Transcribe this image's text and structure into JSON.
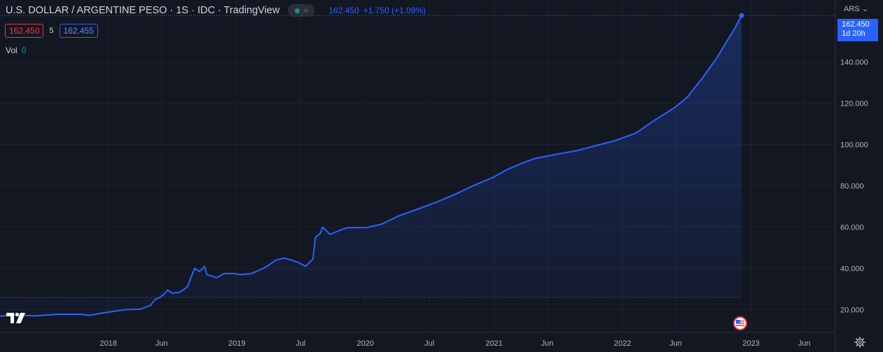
{
  "header": {
    "title": "U.S. DOLLAR / ARGENTINE PESO · 1S · IDC · TradingView",
    "last_price": "162.450",
    "change": "+1.750 (+1.09%)"
  },
  "quote": {
    "sell": "162.450",
    "spread": "5",
    "buy": "162.455"
  },
  "volume": {
    "label": "Vol",
    "value": "0"
  },
  "price_axis": {
    "currency": "ARS",
    "last_price_tag": "162.450",
    "countdown": "1d 20h"
  },
  "icons": {
    "logo": "tradingview-logo-icon",
    "flag": "us-flag-icon",
    "settings": "gear-icon"
  },
  "colors": {
    "background": "#131722",
    "line": "#2962ff",
    "sell": "#f23645",
    "buy": "#2962ff",
    "volume": "#089981"
  },
  "chart_data": {
    "type": "area",
    "y_axis_side": "right",
    "ylim": [
      9000,
      170000
    ],
    "grid": true,
    "reference_line": 26000,
    "last_value": 162450,
    "y_ticks": [
      20000,
      40000,
      60000,
      80000,
      100000,
      120000,
      140000
    ],
    "y_tick_labels": [
      "20.000",
      "40.000",
      "60.000",
      "80.000",
      "100.000",
      "120.000",
      "140.000"
    ],
    "x_ticks": [
      {
        "date": "2018-01-01",
        "label": "2018"
      },
      {
        "date": "2018-06-01",
        "label": "Jun"
      },
      {
        "date": "2019-01-01",
        "label": "2019"
      },
      {
        "date": "2019-07-01",
        "label": "Jul"
      },
      {
        "date": "2020-01-01",
        "label": "2020"
      },
      {
        "date": "2020-07-01",
        "label": "Jul"
      },
      {
        "date": "2021-01-01",
        "label": "2021"
      },
      {
        "date": "2021-06-01",
        "label": "Jun"
      },
      {
        "date": "2022-01-01",
        "label": "2022"
      },
      {
        "date": "2022-06-01",
        "label": "Jun"
      },
      {
        "date": "2023-01-01",
        "label": "2023"
      },
      {
        "date": "2023-06-01",
        "label": "Jun"
      }
    ],
    "x_start": "2017-02-27",
    "x_end": "2023-07-03",
    "series": [
      {
        "values": [
          [
            "2017-02-27",
            16900
          ],
          [
            "2017-04-10",
            17500
          ],
          [
            "2017-06-05",
            17000
          ],
          [
            "2017-08-14",
            17800
          ],
          [
            "2017-10-16",
            17800
          ],
          [
            "2017-11-06",
            17200
          ],
          [
            "2017-12-18",
            18500
          ],
          [
            "2018-01-08",
            19000
          ],
          [
            "2018-02-19",
            20000
          ],
          [
            "2018-04-02",
            20300
          ],
          [
            "2018-04-30",
            22000
          ],
          [
            "2018-05-14",
            25000
          ],
          [
            "2018-05-28",
            26000
          ],
          [
            "2018-06-11",
            28000
          ],
          [
            "2018-06-18",
            29500
          ],
          [
            "2018-07-02",
            28000
          ],
          [
            "2018-07-23",
            28500
          ],
          [
            "2018-08-13",
            31000
          ],
          [
            "2018-08-27",
            37000
          ],
          [
            "2018-09-03",
            40000
          ],
          [
            "2018-09-17",
            38500
          ],
          [
            "2018-10-01",
            41000
          ],
          [
            "2018-10-08",
            37000
          ],
          [
            "2018-11-05",
            35500
          ],
          [
            "2018-11-26",
            37500
          ],
          [
            "2018-12-24",
            37500
          ],
          [
            "2019-01-14",
            37000
          ],
          [
            "2019-02-11",
            37500
          ],
          [
            "2019-03-11",
            39500
          ],
          [
            "2019-04-01",
            41500
          ],
          [
            "2019-04-22",
            44000
          ],
          [
            "2019-05-13",
            45000
          ],
          [
            "2019-05-27",
            44500
          ],
          [
            "2019-06-24",
            43000
          ],
          [
            "2019-07-15",
            41000
          ],
          [
            "2019-08-05",
            44500
          ],
          [
            "2019-08-12",
            55000
          ],
          [
            "2019-08-26",
            57000
          ],
          [
            "2019-09-02",
            60000
          ],
          [
            "2019-09-23",
            56500
          ],
          [
            "2019-10-21",
            58500
          ],
          [
            "2019-11-11",
            59700
          ],
          [
            "2020-01-06",
            59800
          ],
          [
            "2020-02-17",
            61500
          ],
          [
            "2020-04-06",
            65500
          ],
          [
            "2020-05-25",
            68500
          ],
          [
            "2020-07-20",
            72000
          ],
          [
            "2020-09-14",
            76000
          ],
          [
            "2020-11-02",
            80000
          ],
          [
            "2020-12-28",
            84000
          ],
          [
            "2021-02-08",
            88000
          ],
          [
            "2021-03-22",
            91000
          ],
          [
            "2021-04-26",
            93200
          ],
          [
            "2021-06-28",
            95300
          ],
          [
            "2021-08-23",
            97000
          ],
          [
            "2021-10-18",
            99500
          ],
          [
            "2021-12-13",
            102000
          ],
          [
            "2022-02-07",
            105500
          ],
          [
            "2022-04-04",
            112000
          ],
          [
            "2022-05-30",
            118000
          ],
          [
            "2022-07-04",
            123000
          ],
          [
            "2022-08-15",
            132000
          ],
          [
            "2022-09-26",
            142000
          ],
          [
            "2022-10-24",
            150000
          ],
          [
            "2022-11-14",
            155800
          ],
          [
            "2022-12-05",
            162450
          ]
        ]
      }
    ]
  }
}
